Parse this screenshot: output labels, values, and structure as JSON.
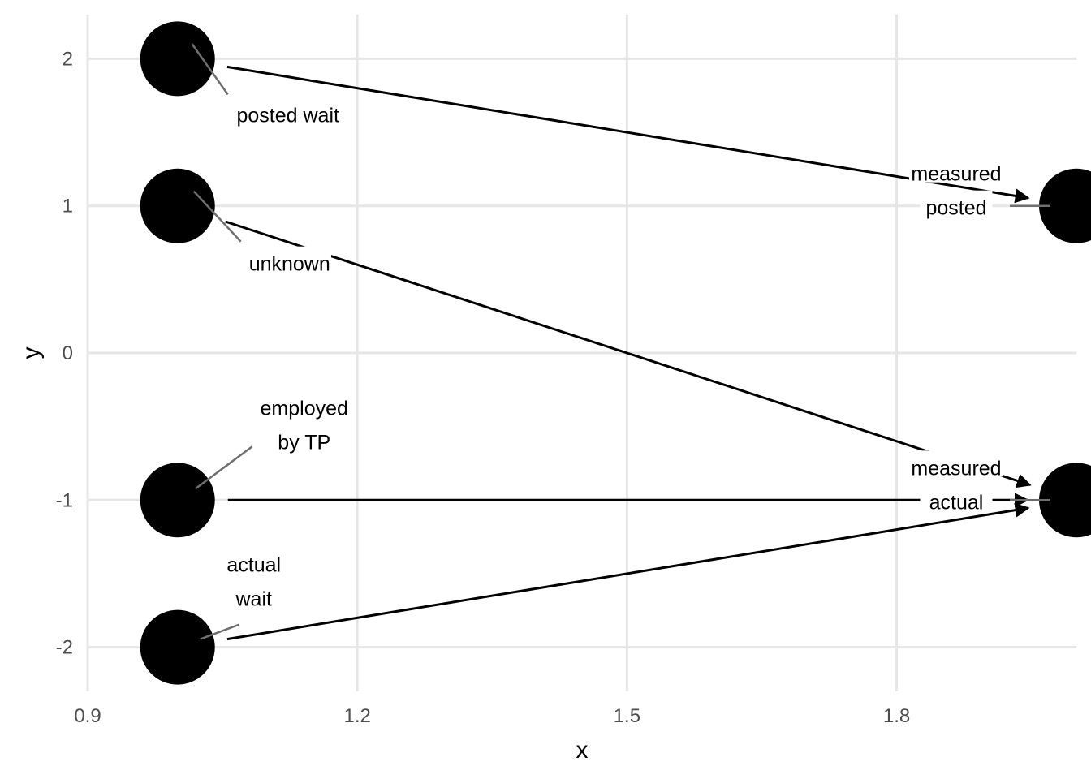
{
  "chart_data": {
    "type": "dag",
    "xlabel": "x",
    "ylabel": "y",
    "xlim": [
      0.9,
      2.0
    ],
    "ylim": [
      -2.3,
      2.3
    ],
    "x_ticks": [
      {
        "value": 0.9,
        "label": "0.9"
      },
      {
        "value": 1.2,
        "label": "1.2"
      },
      {
        "value": 1.5,
        "label": "1.5"
      },
      {
        "value": 1.8,
        "label": "1.8"
      }
    ],
    "y_ticks": [
      {
        "value": 2,
        "label": "2"
      },
      {
        "value": 1,
        "label": "1"
      },
      {
        "value": 0,
        "label": "0"
      },
      {
        "value": -1,
        "label": "-1"
      },
      {
        "value": -2,
        "label": "-2"
      }
    ],
    "grid": true,
    "nodes": [
      {
        "id": "posted_wait",
        "x": 1,
        "y": 2,
        "label": [
          "posted wait"
        ]
      },
      {
        "id": "unknown",
        "x": 1,
        "y": 1,
        "label": [
          "unknown"
        ]
      },
      {
        "id": "employed_by_tp",
        "x": 1,
        "y": -1,
        "label": [
          "employed",
          "by TP"
        ]
      },
      {
        "id": "actual_wait",
        "x": 1,
        "y": -2,
        "label": [
          "actual",
          "wait"
        ]
      },
      {
        "id": "measured_posted",
        "x": 2,
        "y": 1,
        "label": [
          "measured",
          "posted"
        ]
      },
      {
        "id": "measured_actual",
        "x": 2,
        "y": -1,
        "label": [
          "measured",
          "actual"
        ]
      }
    ],
    "edges": [
      {
        "from": "posted_wait",
        "to": "measured_posted"
      },
      {
        "from": "unknown",
        "to": "measured_actual"
      },
      {
        "from": "employed_by_tp",
        "to": "measured_actual"
      },
      {
        "from": "actual_wait",
        "to": "measured_actual"
      }
    ]
  }
}
